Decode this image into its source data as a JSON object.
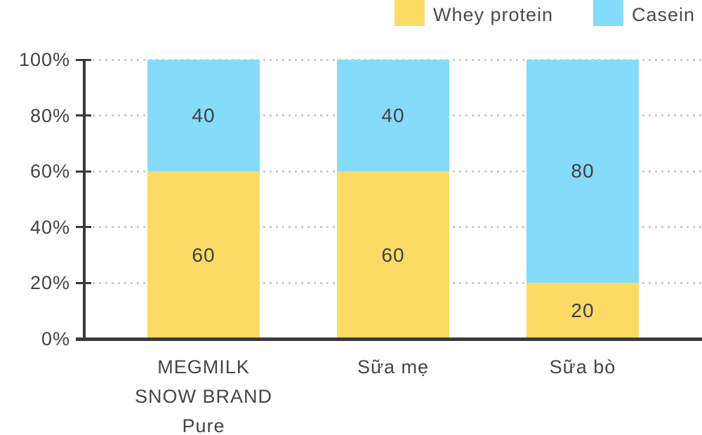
{
  "chart_data": {
    "type": "bar",
    "stacked": true,
    "orientation": "vertical",
    "title": "",
    "xlabel": "",
    "ylabel": "",
    "ylim": [
      0,
      100
    ],
    "y_unit": "%",
    "grid": "dotted-horizontal",
    "legend_position": "top-right",
    "categories": [
      "MEGMILK SNOW BRAND Pure",
      "Sữa mẹ",
      "Sữa bò"
    ],
    "category_label_lines": [
      [
        "MEGMILK",
        "SNOW BRAND",
        "Pure"
      ],
      [
        "Sữa mẹ"
      ],
      [
        "Sữa bò"
      ]
    ],
    "series": [
      {
        "name": "Whey protein",
        "color": "#FBDB66",
        "values": [
          60,
          60,
          20
        ]
      },
      {
        "name": "Casein",
        "color": "#85DBFA",
        "values": [
          40,
          40,
          80
        ]
      }
    ],
    "y_ticks": [
      "100%",
      "80%",
      "60%",
      "40%",
      "20%",
      "0%"
    ]
  },
  "style_colors": {
    "axis": "#3a3a3a",
    "gridline": "#cbcbcb",
    "text": "#454545",
    "value_text": "#3e3f42"
  }
}
